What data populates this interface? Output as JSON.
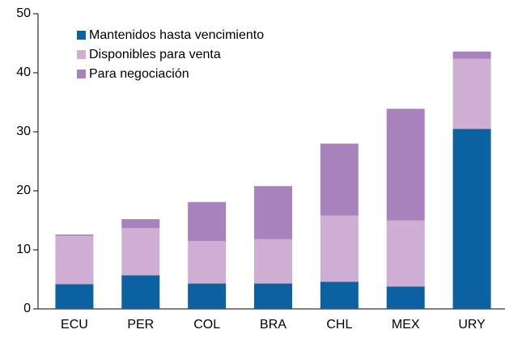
{
  "chart_data": {
    "type": "stacked_bar",
    "categories": [
      "ECU",
      "PER",
      "COL",
      "BRA",
      "CHL",
      "MEX",
      "URY"
    ],
    "series": [
      {
        "name": "Mantenidos hasta vencimiento",
        "color": "#0c62a0",
        "values": [
          4.2,
          5.7,
          4.3,
          4.3,
          4.6,
          3.8,
          30.5
        ]
      },
      {
        "name": "Disponibles para venta",
        "color": "#cfaed3",
        "values": [
          8.2,
          8.0,
          7.2,
          7.5,
          11.2,
          11.2,
          11.9
        ]
      },
      {
        "name": "Para negociación",
        "color": "#a883bb",
        "values": [
          0.2,
          1.5,
          6.6,
          9.0,
          12.2,
          18.9,
          1.2
        ]
      }
    ],
    "ylim": [
      0,
      50
    ],
    "yticks": [
      0,
      10,
      20,
      30,
      40,
      50
    ],
    "legend": "upper left"
  }
}
